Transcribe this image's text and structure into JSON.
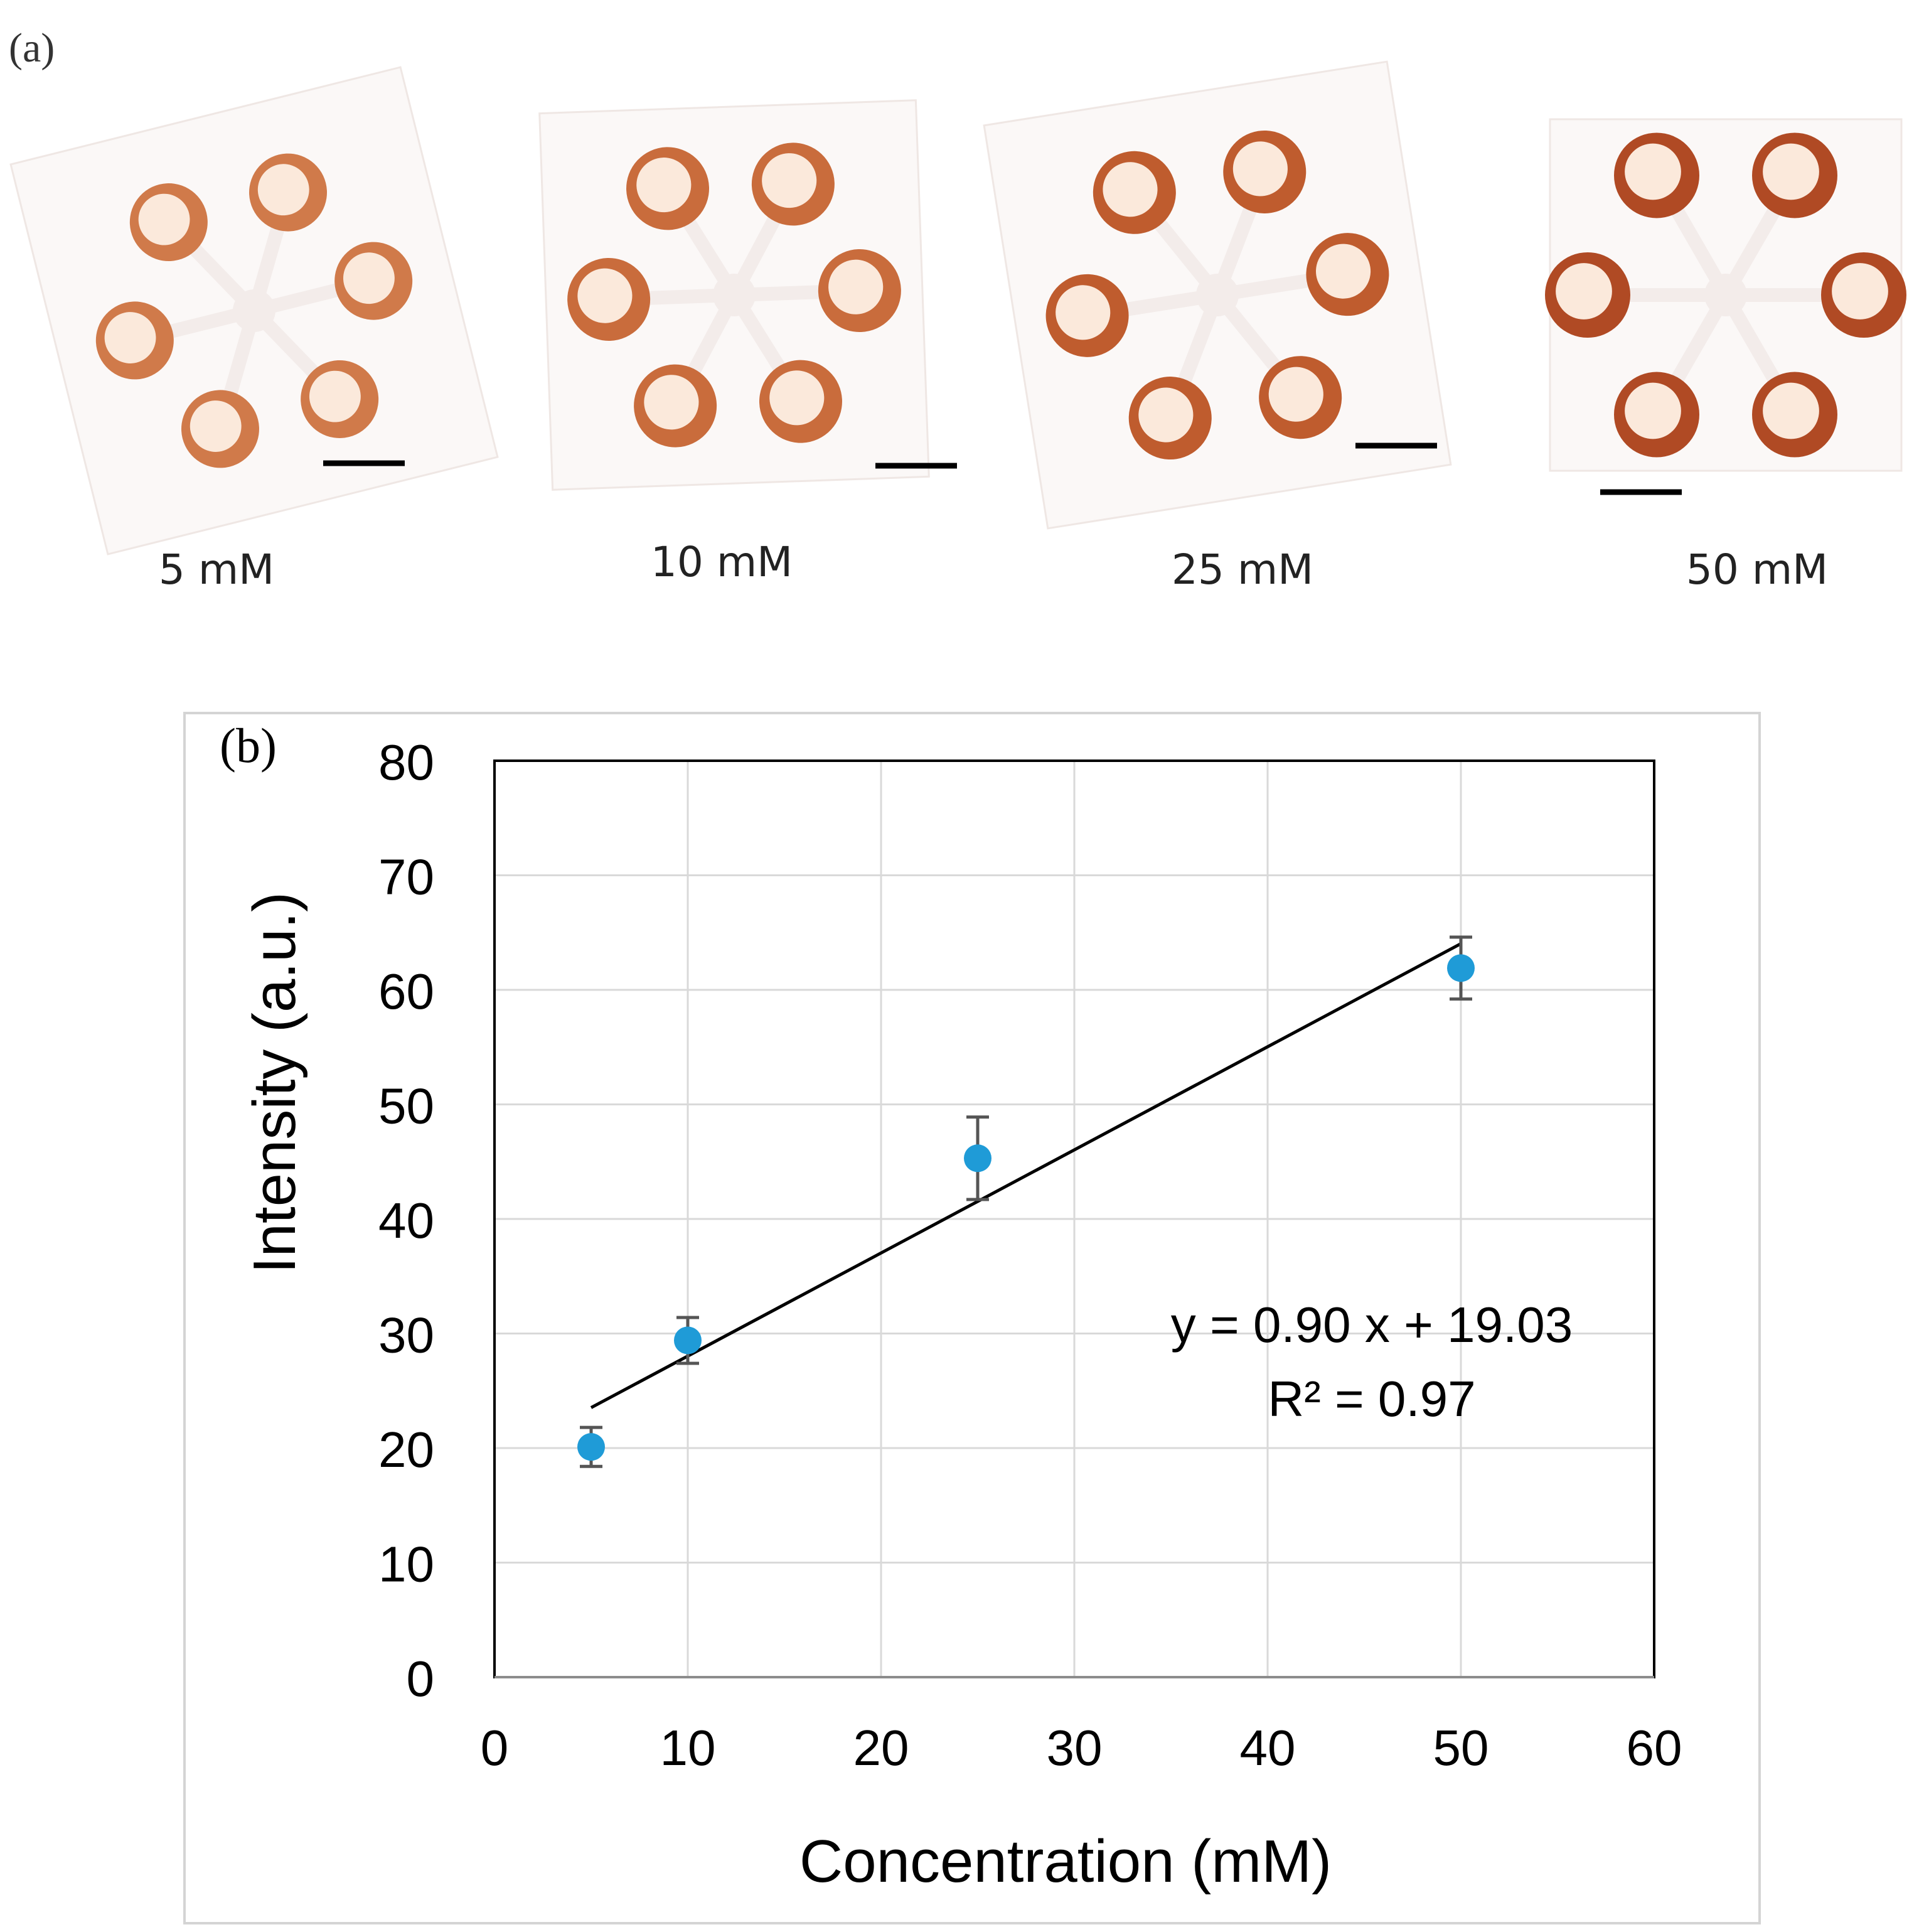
{
  "panel_a": {
    "label": "(a)",
    "samples": [
      {
        "label": "5 mM",
        "concentration_mM": 5,
        "stain": "#e39a66",
        "edge": "#d07a4a"
      },
      {
        "label": "10 mM",
        "concentration_mM": 10,
        "stain": "#df8f5c",
        "edge": "#c96c3c"
      },
      {
        "label": "25 mM",
        "concentration_mM": 25,
        "stain": "#d9824d",
        "edge": "#bf5c2e"
      },
      {
        "label": "50 mM",
        "concentration_mM": 50,
        "stain": "#cf6f3e",
        "edge": "#b04a24"
      }
    ]
  },
  "panel_b": {
    "label": "(b)"
  },
  "chart_data": {
    "type": "scatter",
    "title": "",
    "xlabel": "Concentration (mM)",
    "ylabel": "Intensity (a.u.)",
    "xlim": [
      0,
      60
    ],
    "ylim": [
      0,
      80
    ],
    "x_ticks": [
      0,
      10,
      20,
      30,
      40,
      50,
      60
    ],
    "y_ticks": [
      0,
      10,
      20,
      30,
      40,
      50,
      60,
      70,
      80
    ],
    "grid": true,
    "series": [
      {
        "name": "Intensity",
        "color": "#1f9bd7",
        "x": [
          5,
          10,
          25,
          50
        ],
        "y": [
          20.1,
          29.4,
          45.3,
          61.9
        ],
        "error": [
          1.7,
          2.0,
          3.6,
          2.7
        ]
      }
    ],
    "trendline": {
      "slope": 0.9,
      "intercept": 19.03,
      "x_range": [
        5,
        50
      ],
      "color": "#000000"
    },
    "equation": "y = 0.90 x + 19.03",
    "r_squared": "R² = 0.97"
  }
}
